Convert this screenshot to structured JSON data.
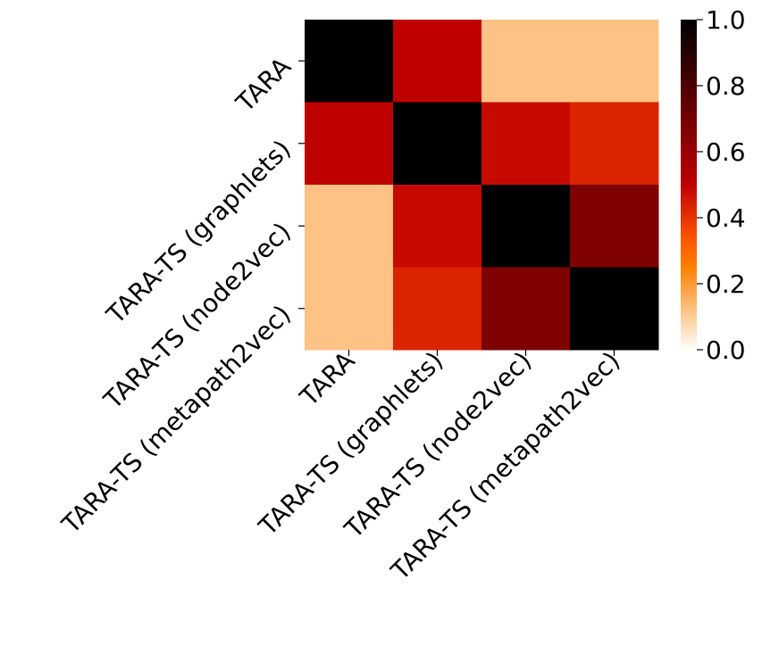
{
  "chart_data": {
    "type": "heatmap",
    "x_categories": [
      "TARA",
      "TARA-TS (graphlets)",
      "TARA-TS (node2vec)",
      "TARA-TS (metapath2vec)"
    ],
    "y_categories": [
      "TARA",
      "TARA-TS (graphlets)",
      "TARA-TS (node2vec)",
      "TARA-TS (metapath2vec)"
    ],
    "values": [
      [
        1.0,
        0.5,
        0.12,
        0.12
      ],
      [
        0.5,
        1.0,
        0.48,
        0.43
      ],
      [
        0.12,
        0.48,
        1.0,
        0.67
      ],
      [
        0.12,
        0.43,
        0.67,
        1.0
      ]
    ],
    "colormap": "gist_heat_r",
    "colorbar": {
      "lim": [
        0,
        1
      ],
      "ticks": [
        {
          "value": 0,
          "label": "0.0"
        },
        0.2,
        0.4,
        0.6,
        0.8,
        {
          "value": 1,
          "label": "1.0"
        }
      ]
    }
  }
}
